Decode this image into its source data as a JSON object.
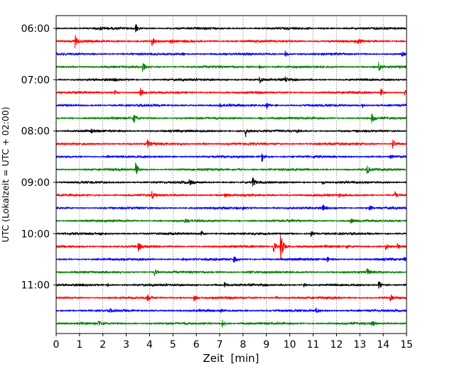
{
  "chart_data": {
    "type": "line",
    "title": "",
    "xlabel": "Zeit  [min]",
    "ylabel": "UTC (Lokalzeit = UTC + 02:00)",
    "xlim": [
      0,
      15
    ],
    "x_ticks": [
      "0",
      "1",
      "2",
      "3",
      "4",
      "5",
      "6",
      "7",
      "8",
      "9",
      "10",
      "11",
      "12",
      "13",
      "14",
      "15"
    ],
    "y_tick_labels": [
      {
        "label": "06:00",
        "trace_index": 0
      },
      {
        "label": "07:00",
        "trace_index": 4
      },
      {
        "label": "08:00",
        "trace_index": 8
      },
      {
        "label": "09:00",
        "trace_index": 12
      },
      {
        "label": "10:00",
        "trace_index": 16
      },
      {
        "label": "11:00",
        "trace_index": 20
      }
    ],
    "trace_interval_min": 15,
    "color_cycle": [
      "#000000",
      "#ff0000",
      "#0000ff",
      "#008000"
    ],
    "grid": {
      "vertical": true,
      "horizontal": false,
      "style": "dotted"
    },
    "traces": [
      {
        "start": "06:00",
        "events": [
          {
            "x": 3.4,
            "amp": 7
          },
          {
            "x": 1.9,
            "amp": 2
          }
        ]
      },
      {
        "start": "06:15",
        "events": [
          {
            "x": 0.8,
            "amp": 9
          },
          {
            "x": 4.1,
            "amp": 8
          },
          {
            "x": 4.9,
            "amp": 3
          },
          {
            "x": 12.9,
            "amp": 4
          }
        ]
      },
      {
        "start": "06:30",
        "events": [
          {
            "x": 9.8,
            "amp": 5
          },
          {
            "x": 14.8,
            "amp": 3
          },
          {
            "x": 5.4,
            "amp": 2
          }
        ]
      },
      {
        "start": "06:45",
        "events": [
          {
            "x": 3.7,
            "amp": 8
          },
          {
            "x": 13.8,
            "amp": 7
          },
          {
            "x": 8.7,
            "amp": 3
          }
        ]
      },
      {
        "start": "07:00",
        "events": [
          {
            "x": 8.7,
            "amp": 7
          },
          {
            "x": 9.8,
            "amp": 4
          },
          {
            "x": 2.5,
            "amp": 2
          }
        ]
      },
      {
        "start": "07:15",
        "events": [
          {
            "x": 3.6,
            "amp": 7
          },
          {
            "x": 13.9,
            "amp": 6
          },
          {
            "x": 14.9,
            "amp": 4
          },
          {
            "x": 2.5,
            "amp": 3
          }
        ]
      },
      {
        "start": "07:30",
        "events": [
          {
            "x": 9.0,
            "amp": 6
          },
          {
            "x": 13.1,
            "amp": 3
          },
          {
            "x": 7.0,
            "amp": 2
          }
        ]
      },
      {
        "start": "07:45",
        "events": [
          {
            "x": 3.3,
            "amp": 7
          },
          {
            "x": 13.5,
            "amp": 7
          },
          {
            "x": 8.7,
            "amp": 2
          }
        ]
      },
      {
        "start": "08:00",
        "events": [
          {
            "x": 8.1,
            "amp": 9
          },
          {
            "x": 10.3,
            "amp": 3
          },
          {
            "x": 1.5,
            "amp": 2
          }
        ]
      },
      {
        "start": "08:15",
        "events": [
          {
            "x": 3.9,
            "amp": 6
          },
          {
            "x": 14.4,
            "amp": 9
          },
          {
            "x": 6.3,
            "amp": 2
          }
        ]
      },
      {
        "start": "08:30",
        "events": [
          {
            "x": 8.8,
            "amp": 8
          },
          {
            "x": 14.3,
            "amp": 3
          },
          {
            "x": 2.2,
            "amp": 2
          }
        ]
      },
      {
        "start": "08:45",
        "events": [
          {
            "x": 3.4,
            "amp": 10
          },
          {
            "x": 13.3,
            "amp": 6
          },
          {
            "x": 7.8,
            "amp": 2
          }
        ]
      },
      {
        "start": "09:00",
        "events": [
          {
            "x": 8.4,
            "amp": 8
          },
          {
            "x": 5.7,
            "amp": 4
          },
          {
            "x": 11.4,
            "amp": 3
          }
        ]
      },
      {
        "start": "09:15",
        "events": [
          {
            "x": 4.1,
            "amp": 6
          },
          {
            "x": 14.5,
            "amp": 5
          },
          {
            "x": 12.1,
            "amp": 3
          },
          {
            "x": 7.2,
            "amp": 2
          }
        ]
      },
      {
        "start": "09:30",
        "events": [
          {
            "x": 11.4,
            "amp": 5
          },
          {
            "x": 13.4,
            "amp": 4
          },
          {
            "x": 8.0,
            "amp": 3
          }
        ]
      },
      {
        "start": "09:45",
        "events": [
          {
            "x": 12.6,
            "amp": 4
          },
          {
            "x": 5.5,
            "amp": 2
          }
        ]
      },
      {
        "start": "10:00",
        "events": [
          {
            "x": 10.9,
            "amp": 5
          },
          {
            "x": 6.2,
            "amp": 4
          },
          {
            "x": 1.9,
            "amp": 2
          }
        ]
      },
      {
        "start": "10:15",
        "events": [
          {
            "x": 9.6,
            "amp": 26
          },
          {
            "x": 9.3,
            "amp": 12
          },
          {
            "x": 3.5,
            "amp": 7
          },
          {
            "x": 14.1,
            "amp": 6
          },
          {
            "x": 14.6,
            "amp": 4
          },
          {
            "x": 12.4,
            "amp": 3
          }
        ]
      },
      {
        "start": "10:30",
        "events": [
          {
            "x": 7.6,
            "amp": 6
          },
          {
            "x": 11.6,
            "amp": 4
          },
          {
            "x": 14.9,
            "amp": 3
          },
          {
            "x": 5.4,
            "amp": 2
          }
        ]
      },
      {
        "start": "10:45",
        "events": [
          {
            "x": 4.2,
            "amp": 6
          },
          {
            "x": 13.3,
            "amp": 5
          },
          {
            "x": 8.3,
            "amp": 2
          }
        ]
      },
      {
        "start": "11:00",
        "events": [
          {
            "x": 13.8,
            "amp": 8
          },
          {
            "x": 7.2,
            "amp": 4
          },
          {
            "x": 10.6,
            "amp": 3
          },
          {
            "x": 2.2,
            "amp": 2
          }
        ]
      },
      {
        "start": "11:15",
        "events": [
          {
            "x": 5.9,
            "amp": 5
          },
          {
            "x": 14.3,
            "amp": 7
          },
          {
            "x": 3.9,
            "amp": 5
          },
          {
            "x": 9.4,
            "amp": 2
          }
        ]
      },
      {
        "start": "11:30",
        "events": [
          {
            "x": 11.1,
            "amp": 4
          },
          {
            "x": 2.3,
            "amp": 2
          },
          {
            "x": 7.0,
            "amp": 2
          }
        ]
      },
      {
        "start": "11:45",
        "events": [
          {
            "x": 1.8,
            "amp": 5
          },
          {
            "x": 7.1,
            "amp": 7
          },
          {
            "x": 13.5,
            "amp": 5
          }
        ]
      }
    ]
  }
}
